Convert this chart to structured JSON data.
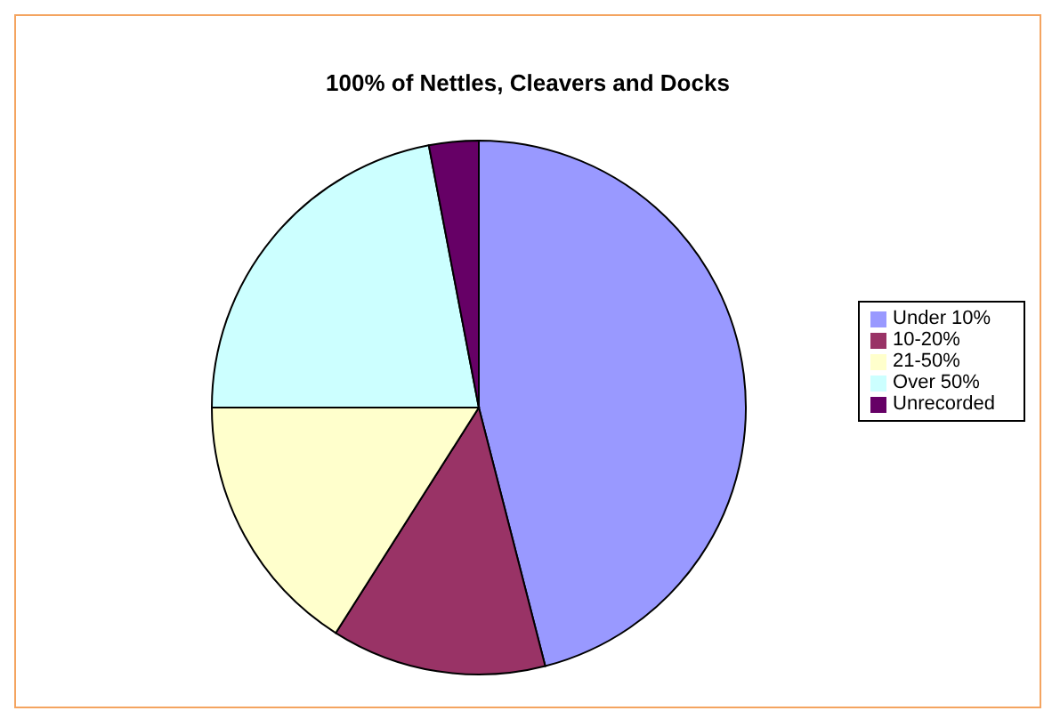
{
  "chart_data": {
    "type": "pie",
    "title": "100% of Nettles, Cleavers and Docks",
    "categories": [
      "Under 10%",
      "10-20%",
      "21-50%",
      "Over 50%",
      "Unrecorded"
    ],
    "values": [
      46,
      13,
      16,
      22,
      3
    ],
    "colors": [
      "#9999ff",
      "#993366",
      "#ffffcc",
      "#ccffff",
      "#660066"
    ],
    "legend": "right"
  }
}
